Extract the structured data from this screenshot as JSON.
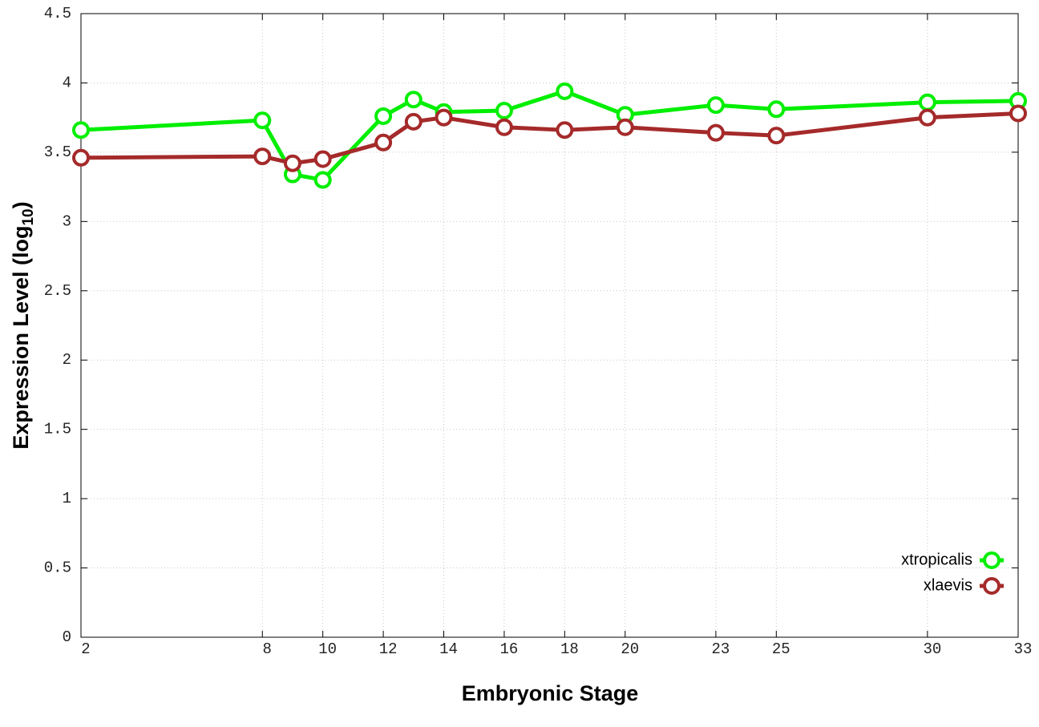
{
  "chart_data": {
    "type": "line",
    "x_label": "Embryonic Stage",
    "y_label": [
      "Expression Level (log",
      "10",
      ")"
    ],
    "x": [
      2,
      8,
      9,
      10,
      12,
      13,
      14,
      16,
      18,
      20,
      23,
      25,
      30,
      33
    ],
    "series": [
      {
        "name": "xtropicalis",
        "color": "#00ee00",
        "values": [
          3.66,
          3.73,
          3.34,
          3.3,
          3.76,
          3.88,
          3.79,
          3.8,
          3.94,
          3.77,
          3.84,
          3.81,
          3.86,
          3.87
        ]
      },
      {
        "name": "xlaevis",
        "color": "#a52a2a",
        "values": [
          3.46,
          3.47,
          3.42,
          3.45,
          3.57,
          3.72,
          3.75,
          3.68,
          3.66,
          3.68,
          3.64,
          3.62,
          3.75,
          3.78
        ]
      }
    ],
    "xlim": [
      2,
      33
    ],
    "xticks": [
      2,
      8,
      10,
      12,
      14,
      16,
      18,
      20,
      23,
      25,
      30,
      33
    ],
    "ylim": [
      0,
      4.5
    ],
    "yticks": [
      0,
      0.5,
      1,
      1.5,
      2,
      2.5,
      3,
      3.5,
      4,
      4.5
    ],
    "grid": true,
    "legend": "bottom-right"
  }
}
